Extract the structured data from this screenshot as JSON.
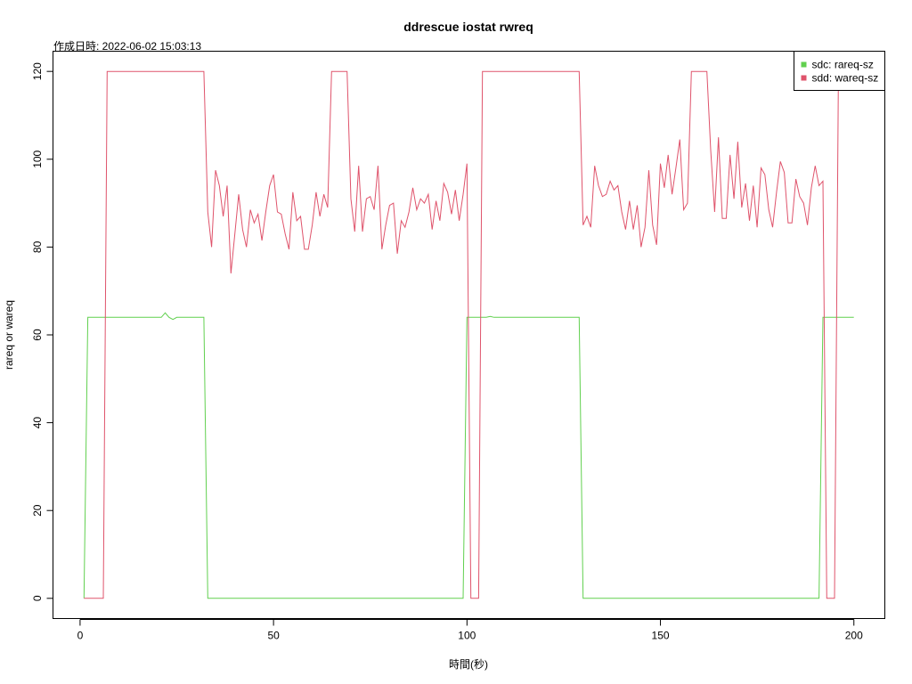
{
  "chart_data": {
    "type": "line",
    "title": "ddrescue iostat rwreq",
    "subtitle": "作成日時: 2022-06-02 15:03:13",
    "xlabel": "時間(秒)",
    "ylabel": "rareq or wareq",
    "xlim": [
      -7,
      208
    ],
    "ylim": [
      -4.6,
      124.6
    ],
    "x_ticks": [
      0,
      50,
      100,
      150,
      200
    ],
    "y_ticks": [
      0,
      20,
      40,
      60,
      80,
      100,
      120
    ],
    "legend_position": "top-right",
    "series": [
      {
        "name": "sdc: rareq-sz",
        "color": "#61D04F",
        "points": [
          [
            1,
            0
          ],
          [
            2,
            64
          ],
          [
            3,
            64
          ],
          [
            6,
            64
          ],
          [
            7,
            64
          ],
          [
            20,
            64
          ],
          [
            21,
            64
          ],
          [
            22,
            65
          ],
          [
            23,
            64
          ],
          [
            24,
            63.5
          ],
          [
            25,
            64
          ],
          [
            26,
            64
          ],
          [
            30,
            64
          ],
          [
            32,
            64
          ],
          [
            33,
            0
          ],
          [
            34,
            0
          ],
          [
            60,
            0
          ],
          [
            90,
            0
          ],
          [
            99,
            0
          ],
          [
            100,
            64
          ],
          [
            101,
            64
          ],
          [
            105,
            64
          ],
          [
            106,
            64.2
          ],
          [
            107,
            64
          ],
          [
            115,
            64
          ],
          [
            129,
            64
          ],
          [
            130,
            0
          ],
          [
            131,
            0
          ],
          [
            150,
            0
          ],
          [
            170,
            0
          ],
          [
            190,
            0
          ],
          [
            191,
            0
          ],
          [
            192,
            64
          ],
          [
            193,
            64
          ],
          [
            200,
            64
          ]
        ]
      },
      {
        "name": "sdd: wareq-sz",
        "color": "#DF536B",
        "points": [
          [
            1,
            0
          ],
          [
            2,
            0
          ],
          [
            5,
            0
          ],
          [
            6,
            0
          ],
          [
            7,
            120
          ],
          [
            8,
            120
          ],
          [
            20,
            120
          ],
          [
            32,
            120
          ],
          [
            33,
            88
          ],
          [
            34,
            80
          ],
          [
            35,
            97.5
          ],
          [
            36,
            94
          ],
          [
            37,
            87
          ],
          [
            38,
            94
          ],
          [
            39,
            74
          ],
          [
            40,
            83
          ],
          [
            41,
            92
          ],
          [
            42,
            84
          ],
          [
            43,
            80
          ],
          [
            44,
            88.5
          ],
          [
            45,
            85.5
          ],
          [
            46,
            87.5
          ],
          [
            47,
            81.5
          ],
          [
            48,
            88
          ],
          [
            49,
            94
          ],
          [
            50,
            96.5
          ],
          [
            51,
            88
          ],
          [
            52,
            87.5
          ],
          [
            53,
            83
          ],
          [
            54,
            79.5
          ],
          [
            55,
            92.5
          ],
          [
            56,
            86
          ],
          [
            57,
            87
          ],
          [
            58,
            79.5
          ],
          [
            59,
            79.5
          ],
          [
            60,
            85
          ],
          [
            61,
            92.5
          ],
          [
            62,
            87
          ],
          [
            63,
            92
          ],
          [
            64,
            89
          ],
          [
            65,
            120
          ],
          [
            66,
            120
          ],
          [
            68,
            120
          ],
          [
            69,
            120
          ],
          [
            70,
            91
          ],
          [
            71,
            83.5
          ],
          [
            72,
            98.5
          ],
          [
            73,
            83.5
          ],
          [
            74,
            91
          ],
          [
            75,
            91.5
          ],
          [
            76,
            88.5
          ],
          [
            77,
            98.5
          ],
          [
            78,
            79.5
          ],
          [
            79,
            85
          ],
          [
            80,
            89.5
          ],
          [
            81,
            90
          ],
          [
            82,
            78.5
          ],
          [
            83,
            86
          ],
          [
            84,
            84.5
          ],
          [
            85,
            88
          ],
          [
            86,
            93.5
          ],
          [
            87,
            88.5
          ],
          [
            88,
            91
          ],
          [
            89,
            90
          ],
          [
            90,
            92
          ],
          [
            91,
            84
          ],
          [
            92,
            90.5
          ],
          [
            93,
            86
          ],
          [
            94,
            94.5
          ],
          [
            95,
            92.5
          ],
          [
            96,
            87.5
          ],
          [
            97,
            93
          ],
          [
            98,
            86
          ],
          [
            99,
            92
          ],
          [
            100,
            99
          ],
          [
            101,
            0
          ],
          [
            102,
            0
          ],
          [
            103,
            0
          ],
          [
            104,
            120
          ],
          [
            105,
            120
          ],
          [
            120,
            120
          ],
          [
            129,
            120
          ],
          [
            130,
            85
          ],
          [
            131,
            87
          ],
          [
            132,
            84.5
          ],
          [
            133,
            98.5
          ],
          [
            134,
            94
          ],
          [
            135,
            91.5
          ],
          [
            136,
            92
          ],
          [
            137,
            95
          ],
          [
            138,
            93
          ],
          [
            139,
            94
          ],
          [
            140,
            88
          ],
          [
            141,
            84
          ],
          [
            142,
            90.5
          ],
          [
            143,
            84
          ],
          [
            144,
            89.5
          ],
          [
            145,
            80
          ],
          [
            146,
            84.5
          ],
          [
            147,
            97.5
          ],
          [
            148,
            85
          ],
          [
            149,
            80.5
          ],
          [
            150,
            99
          ],
          [
            151,
            93.5
          ],
          [
            152,
            101
          ],
          [
            153,
            92
          ],
          [
            154,
            98
          ],
          [
            155,
            104.5
          ],
          [
            156,
            88.5
          ],
          [
            157,
            90
          ],
          [
            158,
            120
          ],
          [
            159,
            120
          ],
          [
            161,
            120
          ],
          [
            162,
            120
          ],
          [
            163,
            102
          ],
          [
            164,
            88
          ],
          [
            165,
            105
          ],
          [
            166,
            86.5
          ],
          [
            167,
            86.5
          ],
          [
            168,
            101
          ],
          [
            169,
            91
          ],
          [
            170,
            104
          ],
          [
            171,
            89
          ],
          [
            172,
            94.5
          ],
          [
            173,
            86
          ],
          [
            174,
            94
          ],
          [
            175,
            84.5
          ],
          [
            176,
            98
          ],
          [
            177,
            96.5
          ],
          [
            178,
            88.5
          ],
          [
            179,
            84.5
          ],
          [
            180,
            92.5
          ],
          [
            181,
            99.5
          ],
          [
            182,
            97
          ],
          [
            183,
            85.5
          ],
          [
            184,
            85.5
          ],
          [
            185,
            95.5
          ],
          [
            186,
            91.5
          ],
          [
            187,
            90
          ],
          [
            188,
            85
          ],
          [
            189,
            93.5
          ],
          [
            190,
            98.5
          ],
          [
            191,
            94
          ],
          [
            192,
            95
          ],
          [
            193,
            0
          ],
          [
            194,
            0
          ],
          [
            195,
            0
          ],
          [
            196,
            120
          ]
        ]
      }
    ]
  }
}
